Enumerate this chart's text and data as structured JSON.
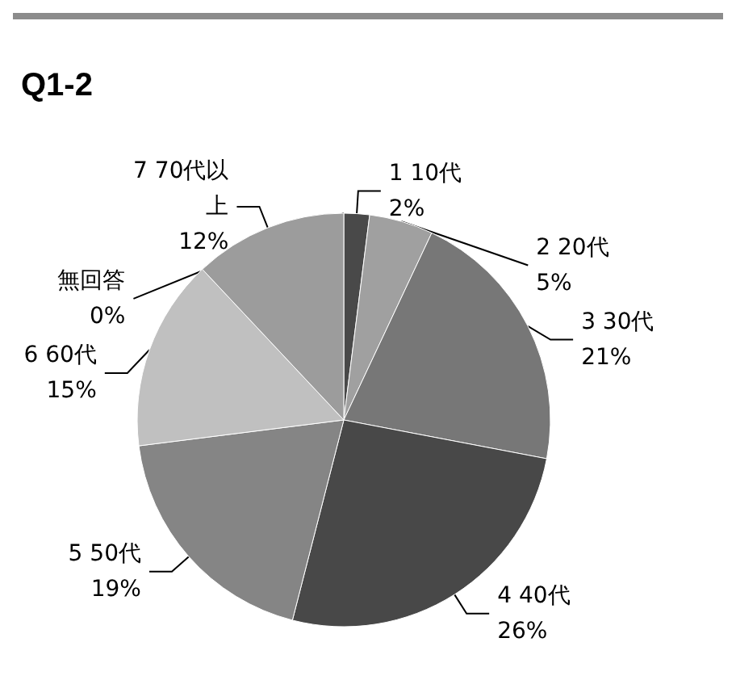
{
  "chart_data": {
    "type": "pie",
    "title": "Q1-2",
    "categories": [
      "無回答",
      "1 10代",
      "2 20代",
      "3 30代",
      "4 40代",
      "5 50代",
      "6 60代",
      "7 70代以上"
    ],
    "values": [
      0,
      2,
      5,
      21,
      26,
      19,
      15,
      12
    ],
    "value_labels": [
      "0%",
      "2%",
      "5%",
      "21%",
      "26%",
      "19%",
      "15%",
      "12%"
    ],
    "colors": [
      "#606060",
      "#494949",
      "#a0a0a0",
      "#777777",
      "#484848",
      "#858585",
      "#c0c0c0",
      "#9c9c9c"
    ],
    "legend": false
  }
}
